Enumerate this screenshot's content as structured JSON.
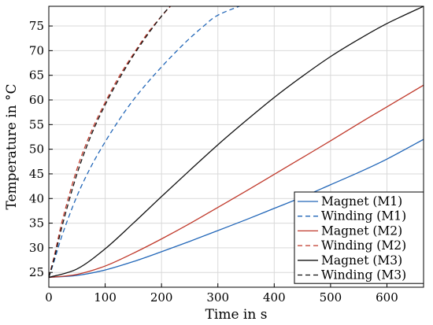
{
  "chart_data": {
    "type": "line",
    "xlabel": "Time in s",
    "ylabel": "Temperature in °C",
    "xlim": [
      0,
      665
    ],
    "ylim": [
      22,
      79
    ],
    "xticks": [
      0,
      100,
      200,
      300,
      400,
      500,
      600
    ],
    "yticks": [
      25,
      30,
      35,
      40,
      45,
      50,
      55,
      60,
      65,
      70,
      75
    ],
    "grid": true,
    "legend_position": "bottom-right",
    "series": [
      {
        "name": "Magnet (M1)",
        "color": "#2166b8",
        "dash": "solid",
        "points": [
          [
            0,
            24
          ],
          [
            50,
            24.4
          ],
          [
            100,
            25.5
          ],
          [
            150,
            27.2
          ],
          [
            200,
            29.2
          ],
          [
            250,
            31.3
          ],
          [
            300,
            33.5
          ],
          [
            350,
            35.7
          ],
          [
            400,
            38
          ],
          [
            450,
            40.3
          ],
          [
            500,
            42.8
          ],
          [
            550,
            45.3
          ],
          [
            600,
            48
          ],
          [
            665,
            52
          ]
        ]
      },
      {
        "name": "Winding (M1)",
        "color": "#2166b8",
        "dash": "dashed",
        "points": [
          [
            0,
            24
          ],
          [
            10,
            27.5
          ],
          [
            25,
            33
          ],
          [
            50,
            40.5
          ],
          [
            75,
            46.5
          ],
          [
            100,
            51.5
          ],
          [
            125,
            56
          ],
          [
            150,
            60
          ],
          [
            175,
            63.5
          ],
          [
            200,
            66.7
          ],
          [
            225,
            69.7
          ],
          [
            250,
            72.5
          ],
          [
            275,
            75
          ],
          [
            300,
            77.2
          ],
          [
            345,
            79.3
          ]
        ]
      },
      {
        "name": "Magnet (M2)",
        "color": "#c0392b",
        "dash": "solid",
        "points": [
          [
            0,
            24
          ],
          [
            50,
            24.6
          ],
          [
            100,
            26.3
          ],
          [
            150,
            28.9
          ],
          [
            200,
            31.8
          ],
          [
            250,
            34.9
          ],
          [
            300,
            38.2
          ],
          [
            350,
            41.5
          ],
          [
            400,
            44.9
          ],
          [
            450,
            48.3
          ],
          [
            500,
            51.7
          ],
          [
            550,
            55.2
          ],
          [
            600,
            58.6
          ],
          [
            665,
            63
          ]
        ]
      },
      {
        "name": "Winding (M2)",
        "color": "#c0392b",
        "dash": "dashed",
        "points": [
          [
            0,
            24
          ],
          [
            10,
            28.5
          ],
          [
            25,
            36
          ],
          [
            50,
            46
          ],
          [
            75,
            53.5
          ],
          [
            100,
            59.5
          ],
          [
            125,
            64.8
          ],
          [
            150,
            69.3
          ],
          [
            175,
            73.5
          ],
          [
            200,
            77
          ],
          [
            220,
            79.5
          ]
        ]
      },
      {
        "name": "Magnet (M3)",
        "color": "#111111",
        "dash": "solid",
        "points": [
          [
            0,
            24
          ],
          [
            50,
            25.7
          ],
          [
            100,
            29.8
          ],
          [
            150,
            35
          ],
          [
            200,
            40.4
          ],
          [
            250,
            45.7
          ],
          [
            300,
            50.9
          ],
          [
            350,
            55.8
          ],
          [
            400,
            60.5
          ],
          [
            450,
            64.8
          ],
          [
            500,
            68.8
          ],
          [
            550,
            72.3
          ],
          [
            600,
            75.5
          ],
          [
            665,
            79
          ]
        ]
      },
      {
        "name": "Winding (M3)",
        "color": "#111111",
        "dash": "dashed",
        "points": [
          [
            0,
            24
          ],
          [
            10,
            28
          ],
          [
            25,
            35
          ],
          [
            50,
            45
          ],
          [
            75,
            52.8
          ],
          [
            100,
            59
          ],
          [
            125,
            64.3
          ],
          [
            150,
            69
          ],
          [
            175,
            73.2
          ],
          [
            200,
            77
          ],
          [
            215,
            79
          ]
        ]
      }
    ]
  }
}
